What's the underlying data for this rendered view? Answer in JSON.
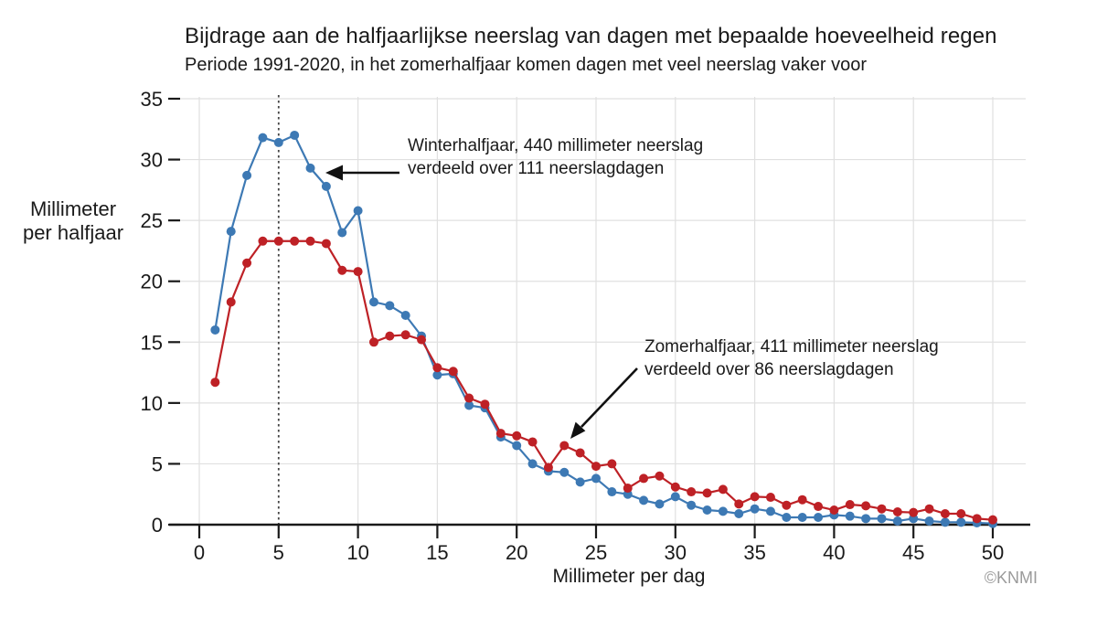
{
  "title": "Bijdrage aan de halfjaarlijkse neerslag van dagen met bepaalde hoeveelheid regen",
  "subtitle": "Periode 1991-2020, in het zomerhalfjaar komen dagen met veel neerslag vaker voor",
  "y_axis_title": {
    "line1": "Millimeter",
    "line2": "per halfjaar"
  },
  "x_axis_title": "Millimeter per dag",
  "credit": "©KNMI",
  "annotations": {
    "winter": {
      "line1": "Winterhalfjaar, 440 millimeter neerslag",
      "line2": "verdeeld over 111 neerslagdagen"
    },
    "zomer": {
      "line1": "Zomerhalfjaar, 411 millimeter neerslag",
      "line2": "verdeeld over 86 neerslagdagen"
    }
  },
  "colors": {
    "winter": "#3d79b4",
    "zomer": "#be2126",
    "grid": "#e0e0e0",
    "axis": "#1a1a1a",
    "dotted_line": "#444444",
    "credit": "#9b9b9b"
  },
  "chart_data": {
    "type": "line",
    "title": "Bijdrage aan de halfjaarlijkse neerslag van dagen met bepaalde hoeveelheid regen",
    "subtitle": "Periode 1991-2020, in het zomerhalfjaar komen dagen met veel neerslag vaker voor",
    "xlabel": "Millimeter per dag",
    "ylabel": "Millimeter per halfjaar",
    "xlim": [
      0,
      52
    ],
    "ylim": [
      0,
      35
    ],
    "xticks": [
      0,
      5,
      10,
      15,
      20,
      25,
      30,
      35,
      40,
      45,
      50
    ],
    "yticks": [
      0,
      5,
      10,
      15,
      20,
      25,
      30,
      35
    ],
    "grid": true,
    "dotted_vline_x": 5,
    "x": [
      1,
      2,
      3,
      4,
      5,
      6,
      7,
      8,
      9,
      10,
      11,
      12,
      13,
      14,
      15,
      16,
      17,
      18,
      19,
      20,
      21,
      22,
      23,
      24,
      25,
      26,
      27,
      28,
      29,
      30,
      31,
      32,
      33,
      34,
      35,
      36,
      37,
      38,
      39,
      40,
      41,
      42,
      43,
      44,
      45,
      46,
      47,
      48,
      49,
      50
    ],
    "series": [
      {
        "name": "Winterhalfjaar",
        "color": "#3d79b4",
        "values": [
          16.0,
          24.1,
          28.7,
          31.8,
          31.4,
          32.0,
          29.3,
          27.8,
          24.0,
          25.8,
          18.3,
          18.0,
          17.2,
          15.5,
          12.3,
          12.4,
          9.8,
          9.6,
          7.2,
          6.5,
          5.0,
          4.4,
          4.3,
          3.5,
          3.8,
          2.7,
          2.5,
          2.0,
          1.7,
          2.3,
          1.6,
          1.2,
          1.1,
          0.9,
          1.3,
          1.1,
          0.6,
          0.6,
          0.6,
          0.8,
          0.7,
          0.5,
          0.5,
          0.3,
          0.5,
          0.3,
          0.2,
          0.2,
          0.15,
          0.1
        ]
      },
      {
        "name": "Zomerhalfjaar",
        "color": "#be2126",
        "values": [
          11.7,
          18.3,
          21.5,
          23.3,
          23.3,
          23.3,
          23.3,
          23.1,
          20.9,
          20.8,
          15.0,
          15.5,
          15.6,
          15.2,
          12.9,
          12.6,
          10.4,
          9.9,
          7.5,
          7.3,
          6.8,
          4.7,
          6.5,
          5.9,
          4.8,
          5.0,
          3.0,
          3.8,
          4.0,
          3.1,
          2.7,
          2.6,
          2.9,
          1.7,
          2.3,
          2.25,
          1.6,
          2.05,
          1.5,
          1.2,
          1.65,
          1.55,
          1.3,
          1.05,
          1.0,
          1.3,
          0.9,
          0.9,
          0.5,
          0.4
        ]
      }
    ]
  }
}
